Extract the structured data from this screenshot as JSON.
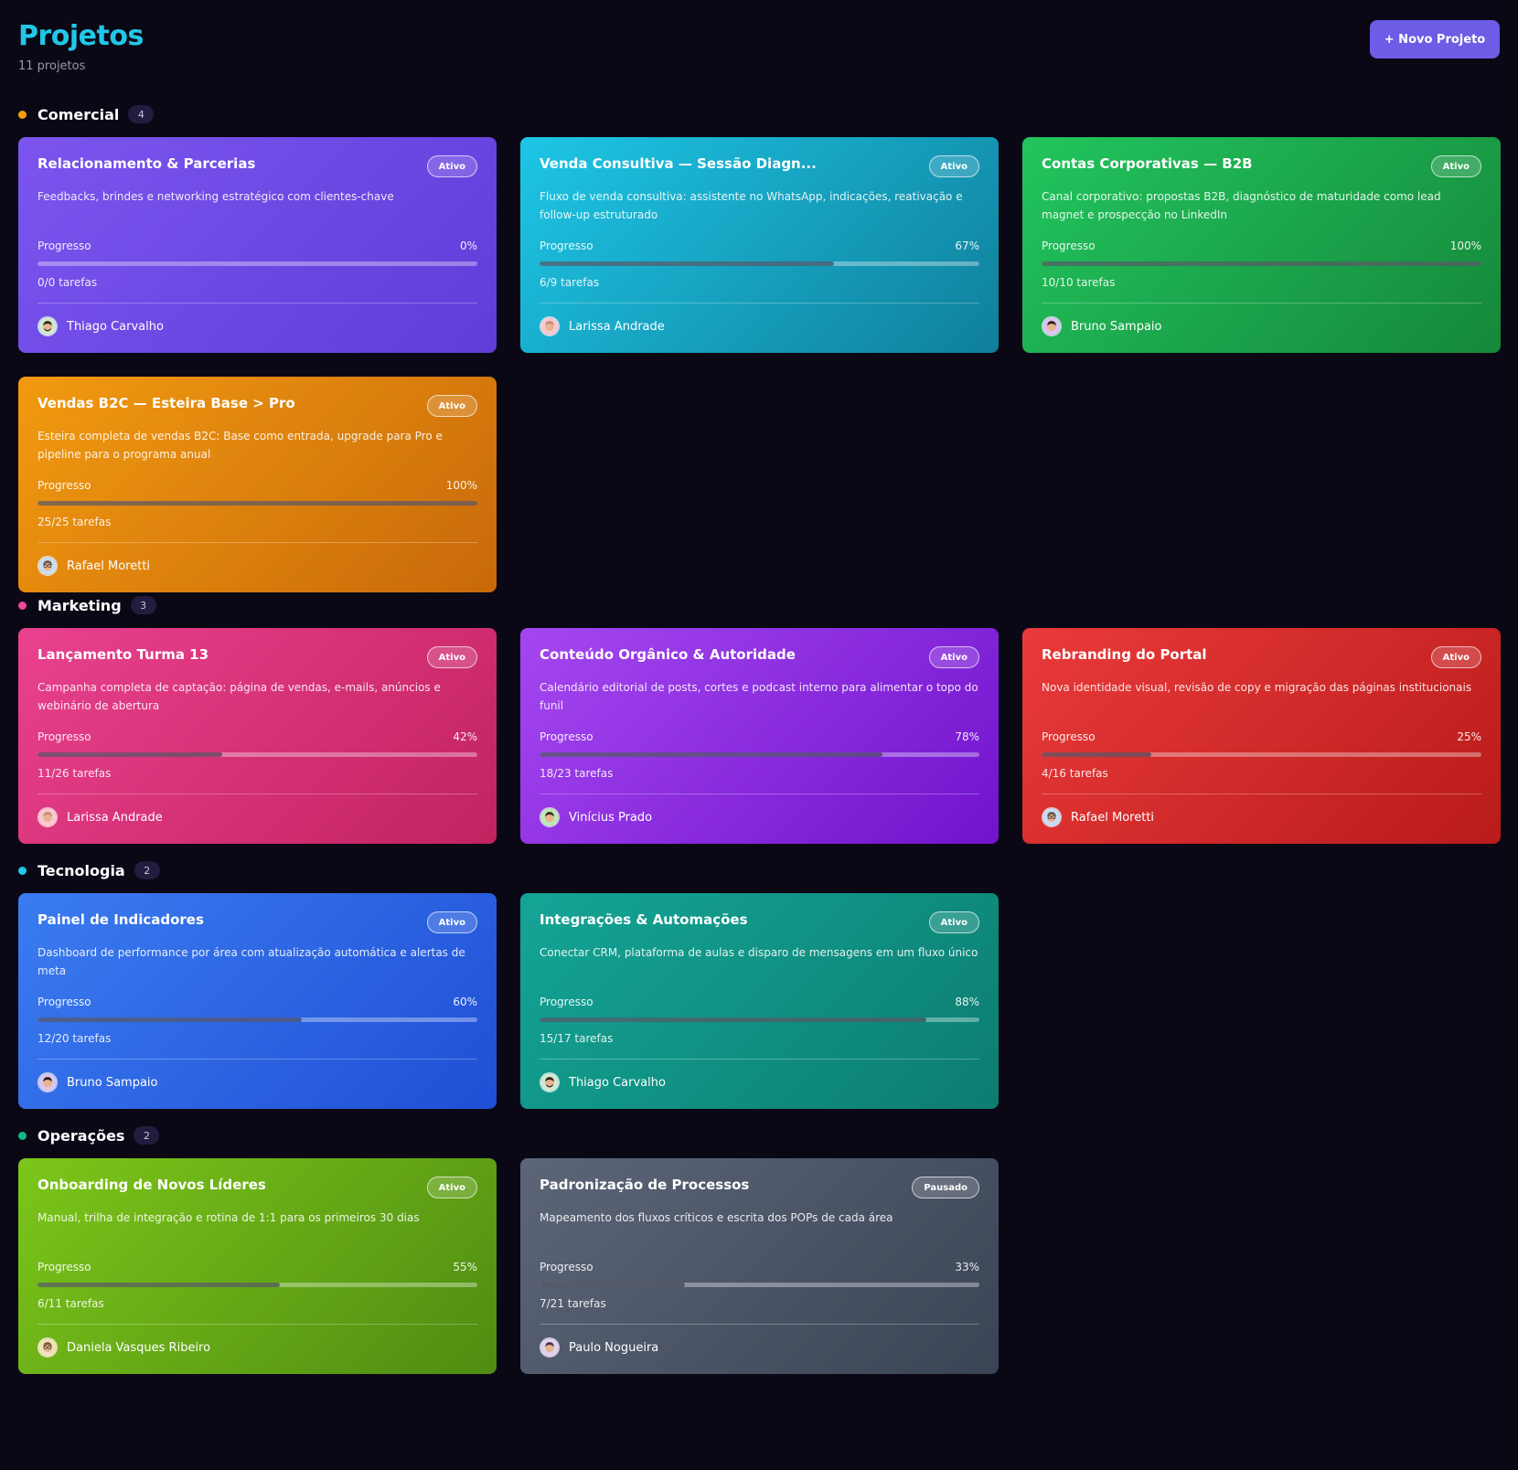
{
  "header": {
    "title": "Projetos",
    "subtitle": "11 projetos",
    "new_button": "+ Novo Projeto"
  },
  "sections": [
    {
      "name": "Comercial",
      "count": "4",
      "dot_color": "#f59e0b",
      "projects": [
        {
          "title": "Relacionamento & Parcerias",
          "status": "Ativo",
          "description": "Feedbacks, brindes e networking estratégico com clientes-chave",
          "progress_label": "Progresso",
          "progress": "0%",
          "progress_value": 0,
          "tasks": "0/0 tarefas",
          "owner": "Thiago Carvalho",
          "avatar_icon": "avatar-bearded-man-icon",
          "gradient": [
            "#7b55ee",
            "#5f3dd9"
          ]
        },
        {
          "title": "Venda Consultiva — Sessão Diagn...",
          "status": "Ativo",
          "description": "Fluxo de venda consultiva: assistente no WhatsApp, indicações, reativação e follow-up estruturado",
          "progress_label": "Progresso",
          "progress": "67%",
          "progress_value": 67,
          "tasks": "6/9 tarefas",
          "owner": "Larissa Andrade",
          "avatar_icon": "avatar-woman-icon",
          "gradient": [
            "#1ec6e6",
            "#0f7f9b"
          ]
        },
        {
          "title": "Contas Corporativas — B2B",
          "status": "Ativo",
          "description": "Canal corporativo: propostas B2B, diagnóstico de maturidade como lead magnet e prospecção no LinkedIn",
          "progress_label": "Progresso",
          "progress": "100%",
          "progress_value": 100,
          "tasks": "10/10 tarefas",
          "owner": "Bruno Sampaio",
          "avatar_icon": "avatar-man-icon",
          "gradient": [
            "#22c55e",
            "#15883a"
          ]
        },
        {
          "title": "Vendas B2C — Esteira Base > Pro",
          "status": "Ativo",
          "description": "Esteira completa de vendas B2C: Base como entrada, upgrade para Pro e pipeline para o programa anual",
          "progress_label": "Progresso",
          "progress": "100%",
          "progress_value": 100,
          "tasks": "25/25 tarefas",
          "owner": "Rafael Moretti",
          "avatar_icon": "avatar-glasses-man-icon",
          "gradient": [
            "#f29a10",
            "#c8690a"
          ]
        }
      ]
    },
    {
      "name": "Marketing",
      "count": "3",
      "dot_color": "#ec4899",
      "projects": [
        {
          "title": "Lançamento Turma 13",
          "status": "Ativo",
          "description": "Campanha completa de captação: página de vendas, e-mails, anúncios e webinário de abertura",
          "progress_label": "Progresso",
          "progress": "42%",
          "progress_value": 42,
          "tasks": "11/26 tarefas",
          "owner": "Larissa Andrade",
          "avatar_icon": "avatar-woman-icon",
          "gradient": [
            "#e9418f",
            "#c2235f"
          ]
        },
        {
          "title": "Conteúdo Orgânico & Autoridade",
          "status": "Ativo",
          "description": "Calendário editorial de posts, cortes e podcast interno para alimentar o topo do funil",
          "progress_label": "Progresso",
          "progress": "78%",
          "progress_value": 78,
          "tasks": "18/23 tarefas",
          "owner": "Vinícius Prado",
          "avatar_icon": "avatar-young-man-icon",
          "gradient": [
            "#a547f0",
            "#7013cc"
          ]
        },
        {
          "title": "Rebranding do Portal",
          "status": "Ativo",
          "description": "Nova identidade visual, revisão de copy e migração das páginas institucionais",
          "progress_label": "Progresso",
          "progress": "25%",
          "progress_value": 25,
          "tasks": "4/16 tarefas",
          "owner": "Rafael Moretti",
          "avatar_icon": "avatar-glasses-man-icon",
          "gradient": [
            "#ea3a3a",
            "#b91b1b"
          ]
        }
      ]
    },
    {
      "name": "Tecnologia",
      "count": "2",
      "dot_color": "#22c7e8",
      "projects": [
        {
          "title": "Painel de Indicadores",
          "status": "Ativo",
          "description": "Dashboard de performance por área com atualização automática e alertas de meta",
          "progress_label": "Progresso",
          "progress": "60%",
          "progress_value": 60,
          "tasks": "12/20 tarefas",
          "owner": "Bruno Sampaio",
          "avatar_icon": "avatar-man-icon",
          "gradient": [
            "#3b7cf0",
            "#1f4fd6"
          ]
        },
        {
          "title": "Integrações & Automações",
          "status": "Ativo",
          "description": "Conectar CRM, plataforma de aulas e disparo de mensagens em um fluxo único",
          "progress_label": "Progresso",
          "progress": "88%",
          "progress_value": 88,
          "tasks": "15/17 tarefas",
          "owner": "Thiago Carvalho",
          "avatar_icon": "avatar-bearded-man-icon",
          "gradient": [
            "#14a596",
            "#0c7d70"
          ]
        }
      ]
    },
    {
      "name": "Operações",
      "count": "2",
      "dot_color": "#10b981",
      "projects": [
        {
          "title": "Onboarding de Novos Líderes",
          "status": "Ativo",
          "description": "Manual, trilha de integração e rotina de 1:1 para os primeiros 30 dias",
          "progress_label": "Progresso",
          "progress": "55%",
          "progress_value": 55,
          "tasks": "6/11 tarefas",
          "owner": "Daniela Vasques Ribeiro",
          "avatar_icon": "avatar-woman-glasses-icon",
          "gradient": [
            "#7cc61a",
            "#4f8c12"
          ]
        },
        {
          "title": "Padronização de Processos",
          "status": "Pausado",
          "description": "Mapeamento dos fluxos críticos e escrita dos POPs de cada área",
          "progress_label": "Progresso",
          "progress": "33%",
          "progress_value": 33,
          "tasks": "7/21 tarefas",
          "owner": "Paulo Nogueira",
          "avatar_icon": "avatar-older-man-icon",
          "gradient": [
            "#5d6678",
            "#394455"
          ]
        }
      ]
    }
  ]
}
